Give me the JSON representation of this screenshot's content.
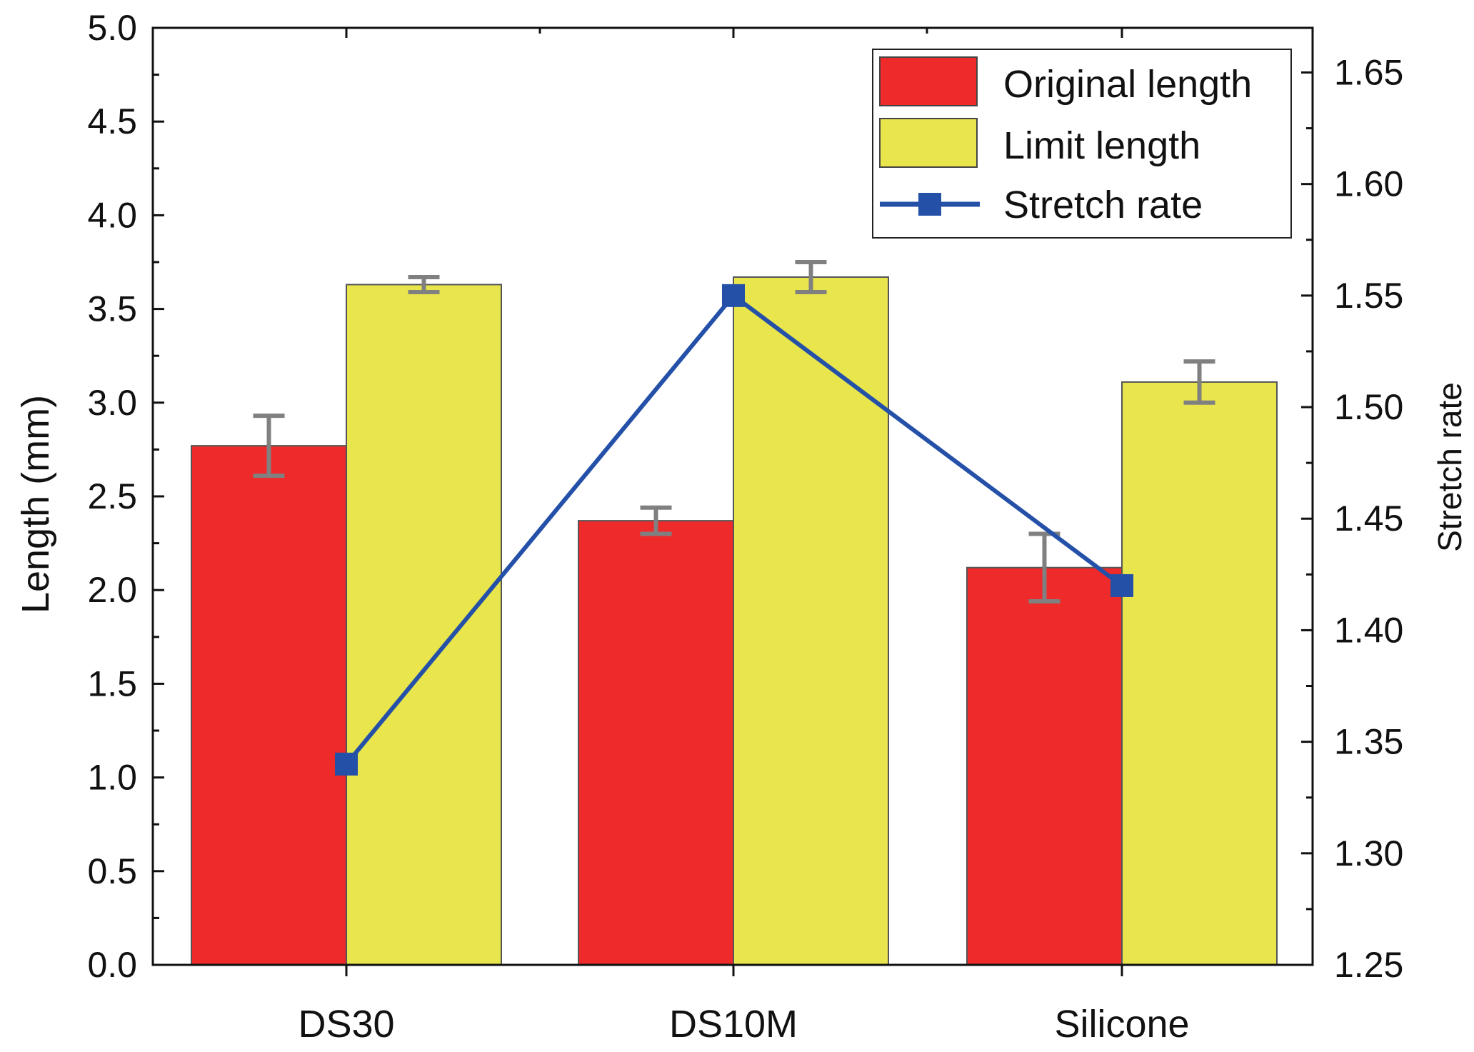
{
  "chart_data": {
    "type": "bar",
    "title": "",
    "xlabel": "",
    "ylabel": "Length (mm)",
    "y2label": "Stretch rate",
    "categories": [
      "DS30",
      "DS10M",
      "Silicone"
    ],
    "ylim": [
      0,
      5.0
    ],
    "y2lim": [
      1.25,
      1.67
    ],
    "yticks": [
      "0.0",
      "0.5",
      "1.0",
      "1.5",
      "2.0",
      "2.5",
      "3.0",
      "3.5",
      "4.0",
      "4.5",
      "5.0"
    ],
    "y2ticks": [
      "1.25",
      "1.30",
      "1.35",
      "1.40",
      "1.45",
      "1.50",
      "1.55",
      "1.60",
      "1.65"
    ],
    "series": [
      {
        "name": "Original length",
        "type": "bar",
        "axis": "left",
        "color": "#ee2a2a",
        "values": [
          2.77,
          2.37,
          2.12
        ],
        "errors": [
          0.16,
          0.07,
          0.18
        ]
      },
      {
        "name": "Limit length",
        "type": "bar",
        "axis": "left",
        "color": "#e8e64c",
        "values": [
          3.63,
          3.67,
          3.11
        ],
        "errors": [
          0.04,
          0.08,
          0.11
        ]
      },
      {
        "name": "Stretch rate",
        "type": "line",
        "axis": "right",
        "color": "#2450a8",
        "values": [
          1.34,
          1.55,
          1.42
        ]
      }
    ],
    "legend": {
      "position": "top-right",
      "entries": [
        "Original length",
        "Limit length",
        "Stretch rate"
      ]
    },
    "grid": false
  }
}
